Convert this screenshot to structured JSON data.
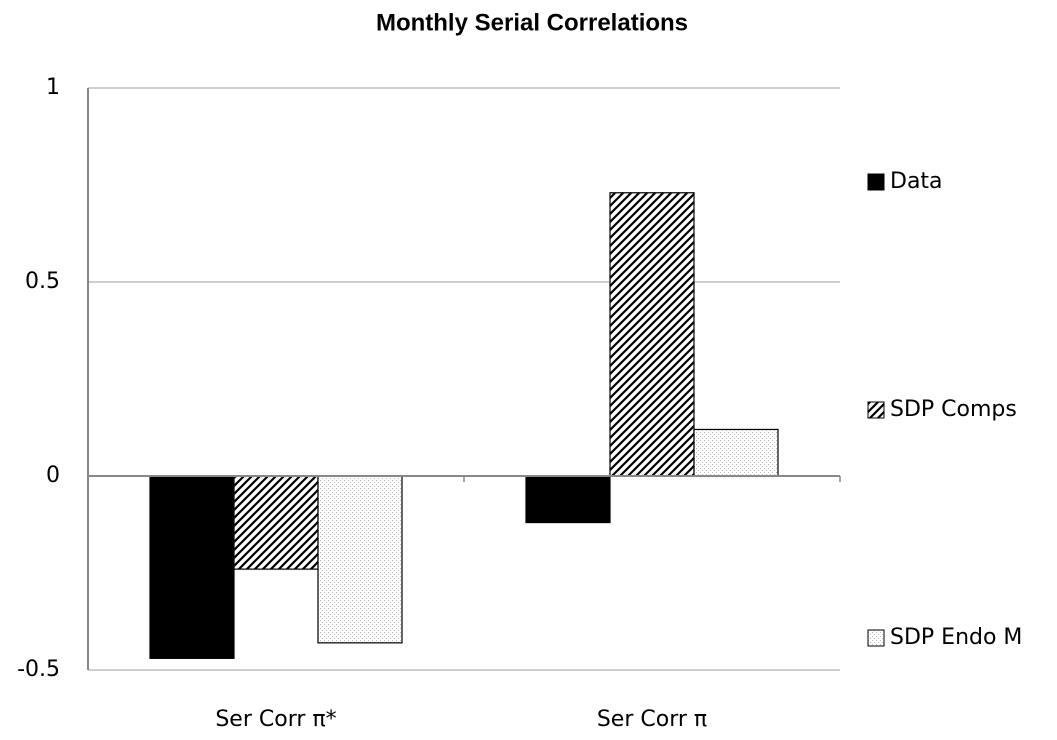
{
  "chart_data": {
    "type": "bar",
    "title": "Monthly Serial Correlations",
    "categories": [
      "Ser Corr π*",
      "Ser Corr π"
    ],
    "series": [
      {
        "name": "Data",
        "color": "#000000",
        "pattern": "solid",
        "values": [
          -0.47,
          -0.12
        ]
      },
      {
        "name": "SDP Comps",
        "color": "#000000",
        "pattern": "hatch",
        "values": [
          -0.24,
          0.73
        ]
      },
      {
        "name": "SDP Endo M",
        "color": "#bbbbbb",
        "pattern": "dots",
        "values": [
          -0.43,
          0.12
        ]
      }
    ],
    "ylim": [
      -0.5,
      1
    ],
    "yticks": [
      -0.5,
      0,
      0.5,
      1
    ],
    "grid": true,
    "legend": "right"
  }
}
